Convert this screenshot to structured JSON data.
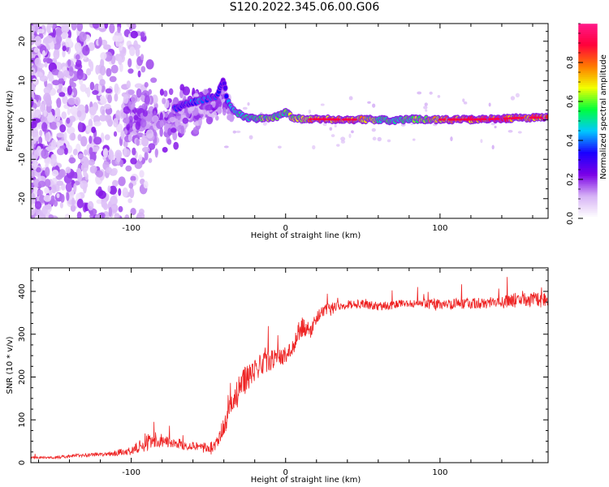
{
  "title": "S120.2022.345.06.00.G06",
  "chart_data": [
    {
      "type": "heatmap",
      "xlabel": "Height of straight line (km)",
      "ylabel": "Frequency (Hz)",
      "xlim": [
        -165,
        170
      ],
      "ylim": [
        -25,
        24.5
      ],
      "xticks": [
        -100,
        0,
        100
      ],
      "yticks": [
        -20,
        -10,
        0,
        10,
        20
      ],
      "grid": false,
      "colorbar": {
        "label": "Normalized spectral amplitude",
        "range": [
          0,
          1
        ],
        "ticks": [
          0.0,
          0.2,
          0.4,
          0.6,
          0.8
        ],
        "colors": [
          "#ffffff",
          "#d6b2f5",
          "#7a00e6",
          "#1a00ff",
          "#00c8ff",
          "#00ff3c",
          "#f2ff00",
          "#ff7a00",
          "#ff003c",
          "#ff1a8c"
        ]
      },
      "ridge_x": [
        -70,
        -65,
        -60,
        -55,
        -50,
        -45,
        -40,
        -38,
        -35,
        -30,
        -25,
        -20,
        -15,
        -10,
        -5,
        0,
        5,
        10,
        20,
        40,
        60,
        70,
        80,
        100,
        120,
        140,
        150,
        160,
        168
      ],
      "ridge_freq": [
        3,
        4,
        4.5,
        5,
        5.5,
        6,
        10,
        5,
        3,
        1.5,
        0.5,
        0.3,
        0.5,
        0.2,
        1,
        2,
        0.5,
        0.2,
        0.2,
        0.1,
        0.1,
        -0.2,
        0.2,
        0.1,
        0.1,
        0.3,
        0.5,
        0.6,
        0.6
      ],
      "ridge_amplitude": [
        0.35,
        0.35,
        0.4,
        0.45,
        0.4,
        0.35,
        0.25,
        0.4,
        0.45,
        0.5,
        0.5,
        0.55,
        0.6,
        0.6,
        0.55,
        0.6,
        0.65,
        0.7,
        0.8,
        0.85,
        0.6,
        0.55,
        0.6,
        0.75,
        0.85,
        0.9,
        0.85,
        0.8,
        0.8
      ]
    },
    {
      "type": "line",
      "xlabel": "Height of straight line (km)",
      "ylabel": "SNR (10 * v/v)",
      "xlim": [
        -165,
        170
      ],
      "ylim": [
        0,
        455
      ],
      "xticks": [
        -100,
        0,
        100
      ],
      "yticks": [
        0,
        100,
        200,
        300,
        400
      ],
      "grid": false,
      "color": "#ee2222",
      "x": [
        -165,
        -150,
        -140,
        -130,
        -115,
        -100,
        -90,
        -85,
        -80,
        -75,
        -70,
        -65,
        -60,
        -55,
        -50,
        -45,
        -40,
        -35,
        -30,
        -25,
        -20,
        -15,
        -10,
        -5,
        0,
        5,
        10,
        15,
        20,
        25,
        30,
        40,
        50,
        60,
        80,
        100,
        120,
        140,
        150,
        160,
        170
      ],
      "y": [
        12,
        12,
        15,
        18,
        20,
        28,
        45,
        55,
        50,
        45,
        45,
        40,
        40,
        38,
        35,
        40,
        80,
        130,
        170,
        200,
        220,
        230,
        240,
        245,
        250,
        270,
        320,
        300,
        340,
        355,
        365,
        370,
        370,
        365,
        372,
        370,
        372,
        375,
        380,
        380,
        380
      ],
      "spread": [
        5,
        5,
        8,
        8,
        10,
        20,
        40,
        40,
        35,
        25,
        25,
        20,
        20,
        20,
        25,
        30,
        60,
        70,
        70,
        70,
        60,
        50,
        50,
        40,
        40,
        40,
        50,
        40,
        30,
        25,
        25,
        20,
        20,
        20,
        20,
        25,
        25,
        30,
        35,
        40,
        35
      ]
    }
  ]
}
